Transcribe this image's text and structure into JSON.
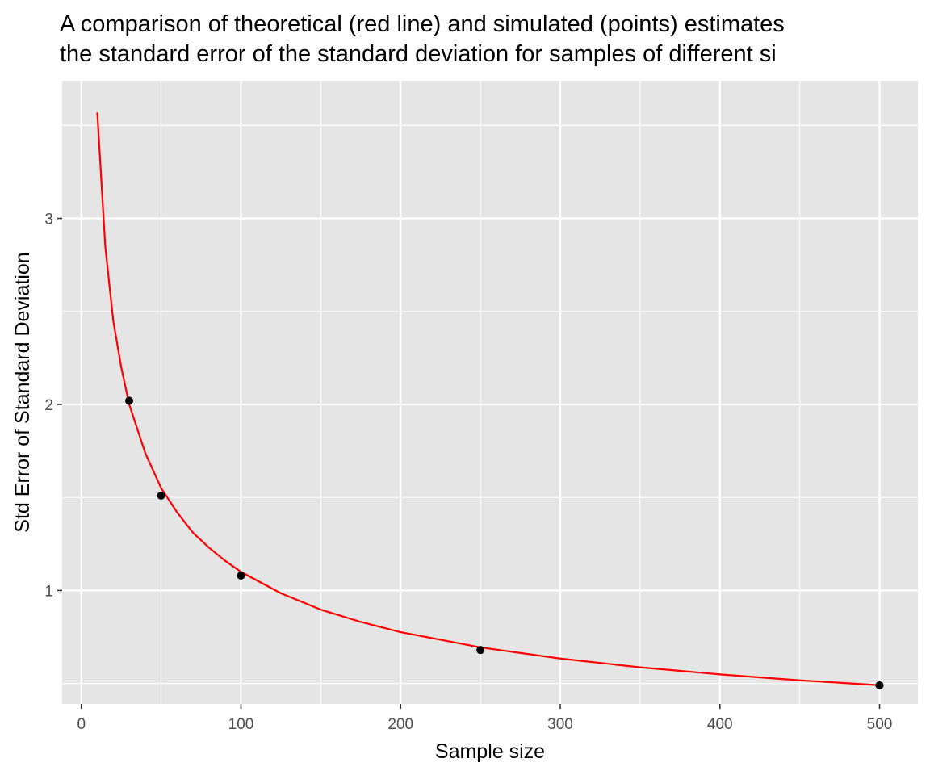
{
  "chart_data": {
    "type": "line",
    "title_line1": "A comparison of theoretical (red line) and simulated (points) estimates",
    "title_line2": "the standard error of the standard deviation for samples of different si",
    "xlabel": "Sample size",
    "ylabel": "Std Error of Standard Deviation",
    "xlim": [
      -12,
      524
    ],
    "ylim": [
      0.39,
      3.74
    ],
    "x_ticks": [
      0,
      100,
      200,
      300,
      400,
      500
    ],
    "x_tick_labels": [
      "0",
      "100",
      "200",
      "300",
      "400",
      "500"
    ],
    "y_ticks": [
      1,
      2,
      3
    ],
    "y_tick_labels": [
      "1",
      "2",
      "3"
    ],
    "x_minor_ticks": [
      50,
      150,
      250,
      350,
      450
    ],
    "y_minor_ticks": [
      0.5,
      1.5,
      2.5,
      3.5
    ],
    "grid": true,
    "background_color": "#e5e5e5",
    "series": [
      {
        "kind": "line",
        "color": "#ff0000",
        "x": [
          10,
          15,
          20,
          25,
          30,
          40,
          50,
          60,
          70,
          80,
          90,
          100,
          125,
          150,
          175,
          200,
          250,
          300,
          350,
          400,
          450,
          500
        ],
        "y": [
          3.57,
          2.85,
          2.45,
          2.2,
          2.0,
          1.74,
          1.55,
          1.42,
          1.31,
          1.23,
          1.16,
          1.1,
          0.985,
          0.897,
          0.831,
          0.776,
          0.694,
          0.634,
          0.587,
          0.549,
          0.517,
          0.491
        ]
      },
      {
        "kind": "points",
        "color": "#000000",
        "x": [
          30,
          50,
          100,
          250,
          500
        ],
        "y": [
          2.02,
          1.51,
          1.08,
          0.68,
          0.49
        ]
      }
    ]
  }
}
